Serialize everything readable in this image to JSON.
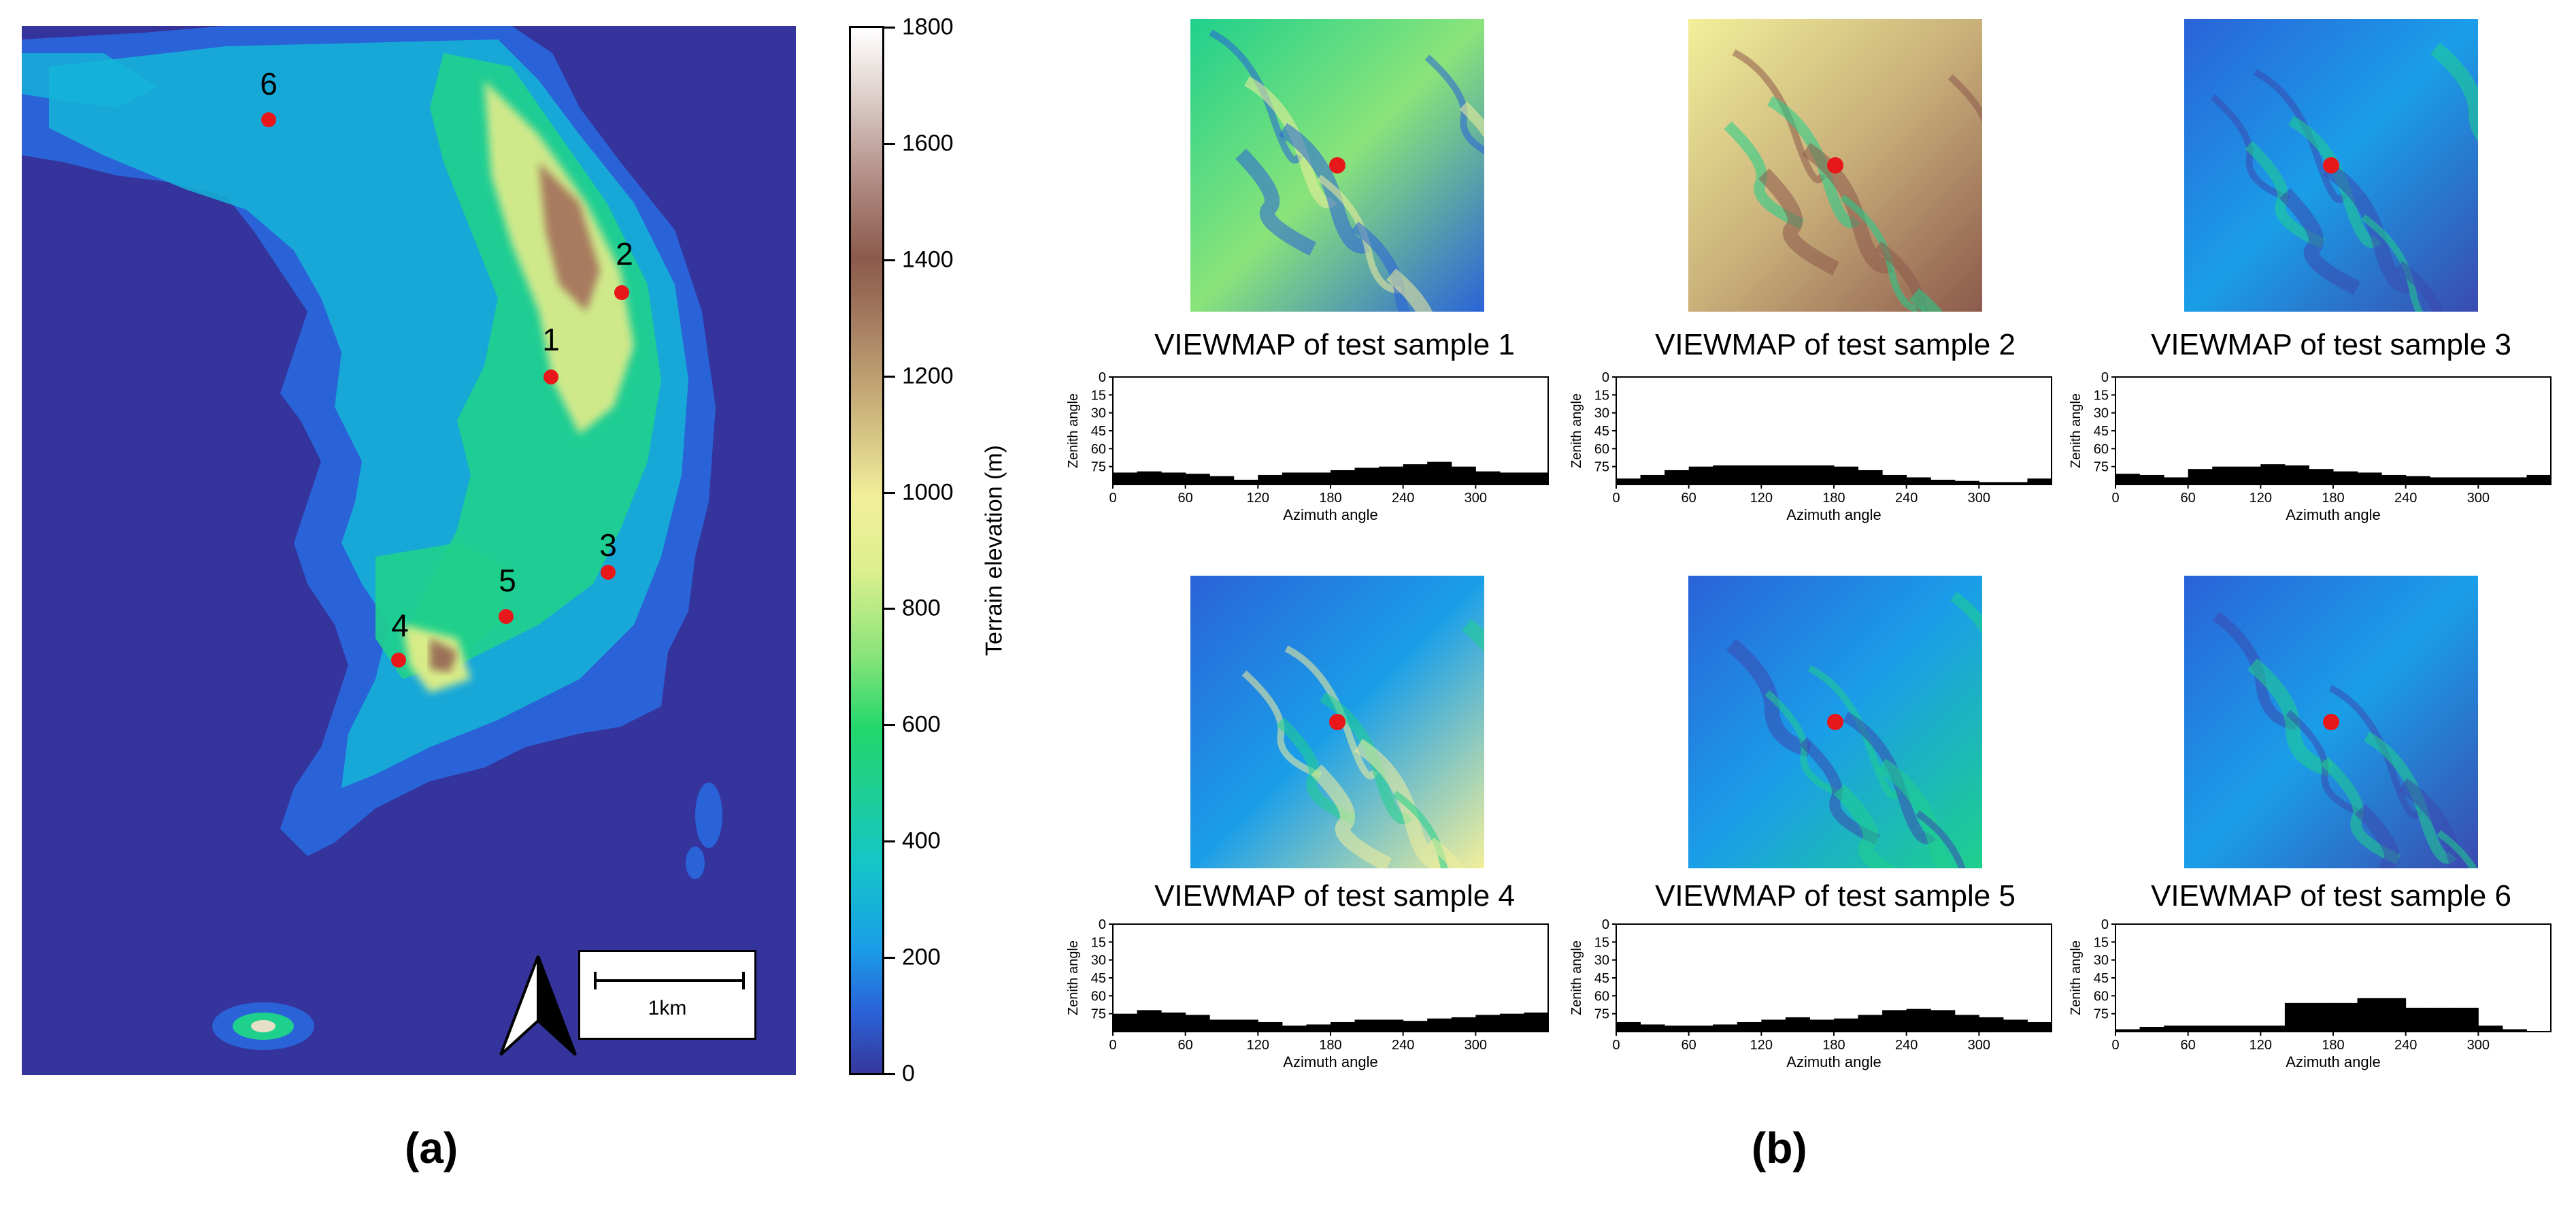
{
  "figure": {
    "panel_a_label": "(a)",
    "panel_b_label": "(b)"
  },
  "map": {
    "scale_label": "1km",
    "colorbar_label": "Terrain elevation (m)",
    "colorbar_ticks": [
      "1800",
      "1600",
      "1400",
      "1200",
      "1000",
      "800",
      "600",
      "400",
      "200",
      "0"
    ],
    "sites": [
      {
        "label": "6"
      },
      {
        "label": "2"
      },
      {
        "label": "1"
      },
      {
        "label": "3"
      },
      {
        "label": "5"
      },
      {
        "label": "4"
      }
    ],
    "colors": {
      "ocean": "#34349c",
      "low": "#2a63d8",
      "mid": "#22d76c",
      "high": "#f2ef9a",
      "peak": "#8c5a4c",
      "site": "#e8171a"
    }
  },
  "samples": [
    {
      "title": "VIEWMAP of test sample 1"
    },
    {
      "title": "VIEWMAP of test sample 2"
    },
    {
      "title": "VIEWMAP of test sample 3"
    },
    {
      "title": "VIEWMAP of test sample 4"
    },
    {
      "title": "VIEWMAP of test sample 5"
    },
    {
      "title": "VIEWMAP of test sample 6"
    }
  ],
  "chart_data": [
    {
      "type": "bar",
      "title": "VIEWMAP of test sample 1",
      "xlabel": "Azimuth angle",
      "ylabel": "Zenith angle",
      "xticks": [
        "0",
        "60",
        "120",
        "180",
        "240",
        "300"
      ],
      "yticks": [
        "0",
        "15",
        "30",
        "45",
        "60",
        "75"
      ],
      "xlim": [
        0,
        360
      ],
      "ylim": [
        90,
        0
      ],
      "x": [
        0,
        20,
        40,
        60,
        80,
        100,
        120,
        140,
        160,
        180,
        200,
        220,
        240,
        260,
        280,
        300,
        320,
        340
      ],
      "values": [
        80,
        79,
        80,
        81,
        83,
        86,
        82,
        80,
        80,
        78,
        76,
        75,
        73,
        71,
        75,
        79,
        80,
        80
      ]
    },
    {
      "type": "bar",
      "title": "VIEWMAP of test sample 2",
      "xlabel": "Azimuth angle",
      "ylabel": "Zenith angle",
      "xticks": [
        "0",
        "60",
        "120",
        "180",
        "240",
        "300"
      ],
      "yticks": [
        "0",
        "15",
        "30",
        "45",
        "60",
        "75"
      ],
      "xlim": [
        0,
        360
      ],
      "ylim": [
        90,
        0
      ],
      "x": [
        0,
        20,
        40,
        60,
        80,
        100,
        120,
        140,
        160,
        180,
        200,
        220,
        240,
        260,
        280,
        300,
        320,
        340
      ],
      "values": [
        85,
        82,
        78,
        75,
        74,
        74,
        74,
        74,
        74,
        75,
        78,
        82,
        84,
        86,
        87,
        88,
        88,
        85
      ]
    },
    {
      "type": "bar",
      "title": "VIEWMAP of test sample 3",
      "xlabel": "Azimuth angle",
      "ylabel": "Zenith angle",
      "xticks": [
        "0",
        "60",
        "120",
        "180",
        "240",
        "300"
      ],
      "yticks": [
        "0",
        "15",
        "30",
        "45",
        "60",
        "75"
      ],
      "xlim": [
        0,
        360
      ],
      "ylim": [
        90,
        0
      ],
      "x": [
        0,
        20,
        40,
        60,
        80,
        100,
        120,
        140,
        160,
        180,
        200,
        220,
        240,
        260,
        280,
        300,
        320,
        340
      ],
      "values": [
        81,
        82,
        84,
        77,
        75,
        75,
        73,
        74,
        77,
        79,
        80,
        82,
        83,
        84,
        84,
        84,
        84,
        82
      ]
    },
    {
      "type": "bar",
      "title": "VIEWMAP of test sample 4",
      "xlabel": "Azimuth angle",
      "ylabel": "Zenith angle",
      "xticks": [
        "0",
        "60",
        "120",
        "180",
        "240",
        "300"
      ],
      "yticks": [
        "0",
        "15",
        "30",
        "45",
        "60",
        "75"
      ],
      "xlim": [
        0,
        360
      ],
      "ylim": [
        90,
        0
      ],
      "x": [
        0,
        20,
        40,
        60,
        80,
        100,
        120,
        140,
        160,
        180,
        200,
        220,
        240,
        260,
        280,
        300,
        320,
        340
      ],
      "values": [
        75,
        72,
        74,
        76,
        80,
        80,
        82,
        85,
        84,
        82,
        80,
        80,
        81,
        79,
        78,
        76,
        75,
        74
      ]
    },
    {
      "type": "bar",
      "title": "VIEWMAP of test sample 5",
      "xlabel": "Azimuth angle",
      "ylabel": "Zenith angle",
      "xticks": [
        "0",
        "60",
        "120",
        "180",
        "240",
        "300"
      ],
      "yticks": [
        "0",
        "15",
        "30",
        "45",
        "60",
        "75"
      ],
      "xlim": [
        0,
        360
      ],
      "ylim": [
        90,
        0
      ],
      "x": [
        0,
        20,
        40,
        60,
        80,
        100,
        120,
        140,
        160,
        180,
        200,
        220,
        240,
        260,
        280,
        300,
        320,
        340
      ],
      "values": [
        82,
        84,
        85,
        85,
        84,
        82,
        80,
        78,
        80,
        79,
        76,
        72,
        71,
        72,
        76,
        78,
        80,
        82
      ]
    },
    {
      "type": "bar",
      "title": "VIEWMAP of test sample 6",
      "xlabel": "Azimuth angle",
      "ylabel": "Zenith angle",
      "xticks": [
        "0",
        "60",
        "120",
        "180",
        "240",
        "300"
      ],
      "yticks": [
        "0",
        "15",
        "30",
        "45",
        "60",
        "75"
      ],
      "xlim": [
        0,
        360
      ],
      "ylim": [
        90,
        0
      ],
      "x": [
        0,
        20,
        40,
        60,
        80,
        100,
        120,
        140,
        160,
        180,
        200,
        220,
        240,
        260,
        280,
        300,
        320,
        340
      ],
      "values": [
        88,
        86,
        85,
        85,
        85,
        85,
        85,
        66,
        66,
        66,
        62,
        62,
        70,
        70,
        70,
        85,
        88,
        90
      ]
    }
  ]
}
